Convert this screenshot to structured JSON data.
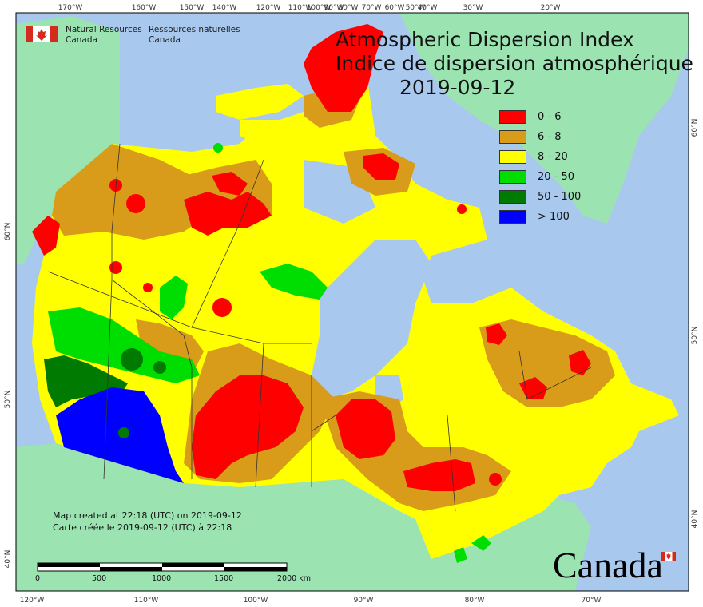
{
  "title": {
    "en": "Atmospheric Dispersion Index",
    "fr": "Indice de dispersion atmosphérique",
    "date": "2019-09-12"
  },
  "agency": {
    "en_line1": "Natural Resources",
    "en_line2": "Canada",
    "fr_line1": "Ressources naturelles",
    "fr_line2": "Canada"
  },
  "legend": [
    {
      "label": "0 - 6",
      "color": "#ff0000"
    },
    {
      "label": "6 - 8",
      "color": "#d99c1a"
    },
    {
      "label": "8 - 20",
      "color": "#ffff00"
    },
    {
      "label": "20 - 50",
      "color": "#00dd00"
    },
    {
      "label": "50 - 100",
      "color": "#007a00"
    },
    {
      "label": "> 100",
      "color": "#0000ff"
    }
  ],
  "created": {
    "en": "Map created at 22:18 (UTC) on 2019-09-12",
    "fr": "Carte créée le 2019-09-12 (UTC) à 22:18"
  },
  "wordmark": "Canada",
  "scalebar": {
    "labels": [
      "0",
      "500",
      "1000",
      "1500",
      "2000 km"
    ]
  },
  "top_ticks": [
    "170°W",
    "160°W",
    "150°W",
    "140°W",
    "120°W",
    "110°W",
    "100°W",
    "90°W",
    "80°W",
    "70°W",
    "60°W",
    "50°W",
    "40°W",
    "30°W",
    "20°W"
  ],
  "bottom_ticks": [
    "120°W",
    "110°W",
    "100°W",
    "90°W",
    "80°W",
    "70°W"
  ],
  "left_ticks": [
    "60°N",
    "50°N",
    "40°N"
  ],
  "right_ticks": [
    "60°N",
    "50°N",
    "40°N"
  ],
  "colors": {
    "ocean": "#a8c8ee",
    "land": "#9be3b1",
    "greenland": "#9be3b1"
  }
}
